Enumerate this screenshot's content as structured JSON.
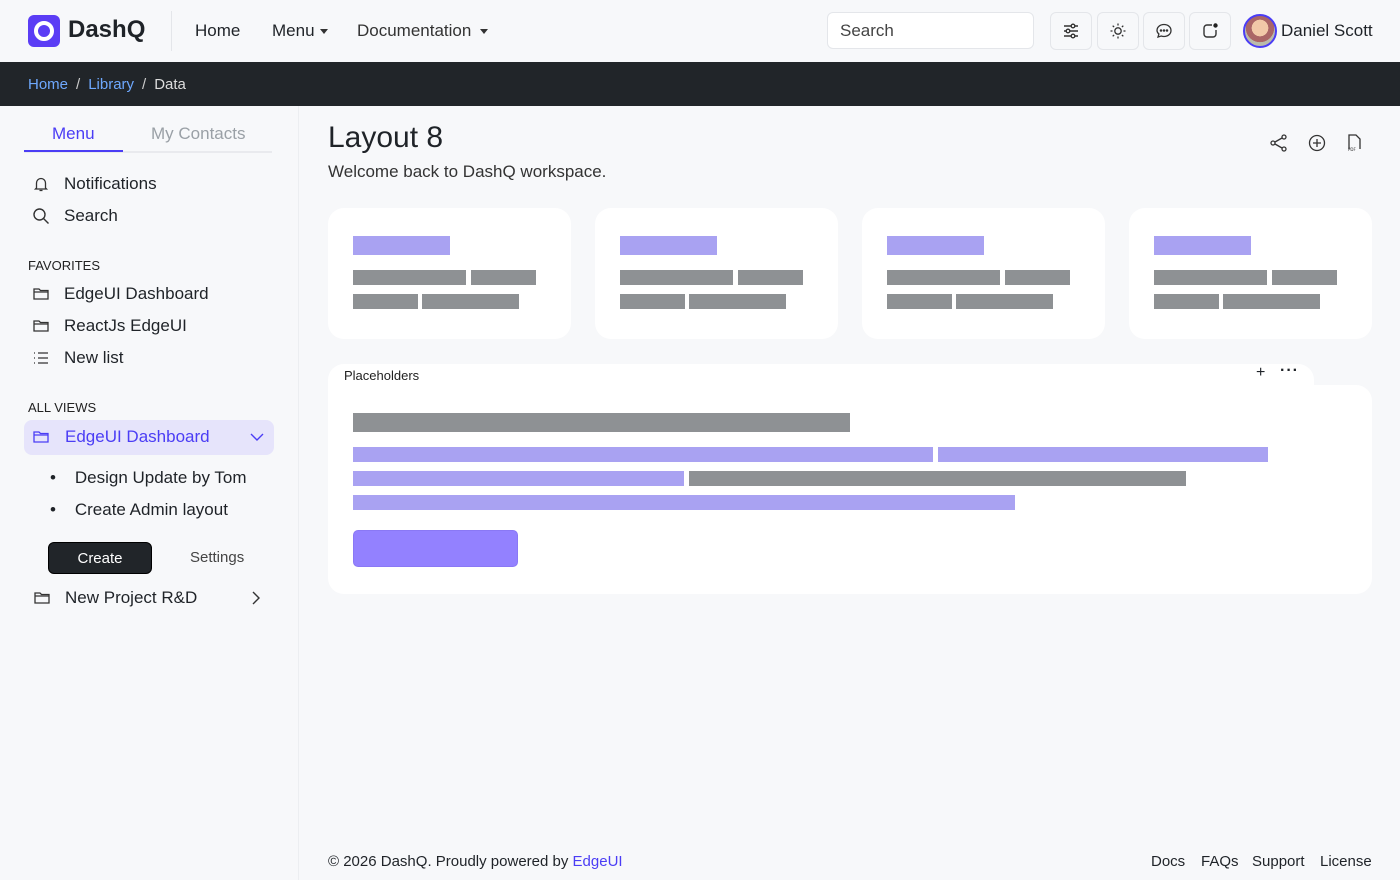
{
  "brand": {
    "name": "DashQ",
    "accent": "#5b3df5"
  },
  "nav": {
    "home": "Home",
    "menu": "Menu",
    "documentation": "Documentation"
  },
  "search": {
    "placeholder": "Search"
  },
  "toolbar_icons": [
    "sliders-icon",
    "sun-icon",
    "chat-icon",
    "notification-icon"
  ],
  "user": {
    "name": "Daniel Scott"
  },
  "breadcrumb": [
    "Home",
    "Library",
    "Data"
  ],
  "sidebar": {
    "tabs": [
      "Menu",
      "My Contacts"
    ],
    "top_items": [
      "Notifications",
      "Search"
    ],
    "favorites_title": "FAVORITES",
    "favorites": [
      "EdgeUI Dashboard",
      "ReactJs EdgeUI",
      "New list"
    ],
    "views_title": "ALL VIEWS",
    "active_view": "EdgeUI Dashboard",
    "sub_items": [
      "Design Update by Tom",
      "Create Admin layout"
    ],
    "create": "Create",
    "settings": "Settings",
    "project": "New Project R&D"
  },
  "page": {
    "title": "Layout 8",
    "subtitle": "Welcome back to DashQ workspace.",
    "actions": [
      "share-icon",
      "add-circle-icon",
      "pdf-file-icon"
    ]
  },
  "panel": {
    "title": "Placeholders"
  },
  "footer": {
    "copyright": "© 2026 DashQ. Proudly powered by ",
    "link": "EdgeUI",
    "links": [
      "Docs",
      "FAQs",
      "Support",
      "License"
    ]
  }
}
